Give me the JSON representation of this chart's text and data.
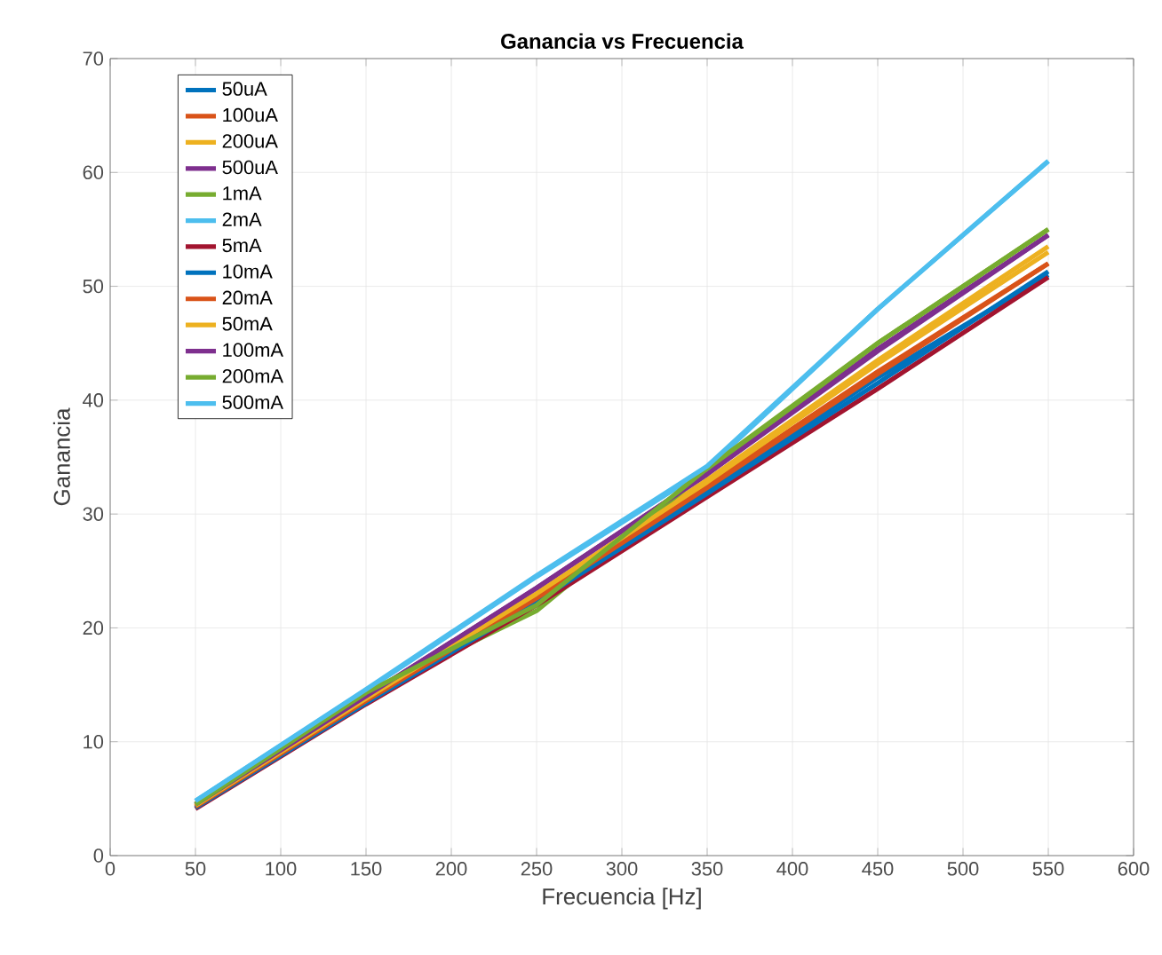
{
  "chart_data": {
    "type": "line",
    "title": "Ganancia vs Frecuencia",
    "xlabel": "Frecuencia [Hz]",
    "ylabel": "Ganancia",
    "x": [
      50,
      150,
      250,
      350,
      450,
      550
    ],
    "xlim": [
      0,
      600
    ],
    "xticks": [
      0,
      50,
      100,
      150,
      200,
      250,
      300,
      350,
      400,
      450,
      500,
      550,
      600
    ],
    "ylim": [
      0,
      70
    ],
    "yticks": [
      0,
      10,
      20,
      30,
      40,
      50,
      60,
      70
    ],
    "grid": true,
    "legend": "top left",
    "line_style": "solid",
    "series": [
      {
        "name": "50uA",
        "color": "#0072bd",
        "values": [
          4.2,
          13.5,
          22.5,
          32,
          42,
          51
        ]
      },
      {
        "name": "100uA",
        "color": "#d95319",
        "values": [
          4.3,
          13.6,
          22.8,
          32.5,
          42.5,
          52
        ]
      },
      {
        "name": "200uA",
        "color": "#edb120",
        "values": [
          4.4,
          13.8,
          23,
          33,
          43.5,
          53.5
        ]
      },
      {
        "name": "500uA",
        "color": "#7e2f8e",
        "values": [
          4.5,
          14,
          23.5,
          33.5,
          44.5,
          54.5
        ]
      },
      {
        "name": "1mA",
        "color": "#77ac30",
        "values": [
          4.5,
          14.2,
          21.5,
          33.8,
          45,
          55
        ]
      },
      {
        "name": "2mA",
        "color": "#4dbeee",
        "values": [
          4.8,
          14.5,
          24.5,
          34,
          48,
          61
        ]
      },
      {
        "name": "5mA",
        "color": "#a2142f",
        "values": [
          4.1,
          13.3,
          22,
          31.5,
          41,
          50.8
        ]
      },
      {
        "name": "10mA",
        "color": "#0072bd",
        "values": [
          4.2,
          13.4,
          22.3,
          31.8,
          41.5,
          51.3
        ]
      },
      {
        "name": "20mA",
        "color": "#d95319",
        "values": [
          4.3,
          13.6,
          22.6,
          32.3,
          42.3,
          52
        ]
      },
      {
        "name": "50mA",
        "color": "#edb120",
        "values": [
          4.4,
          13.8,
          23,
          32.8,
          43.2,
          53
        ]
      },
      {
        "name": "100mA",
        "color": "#7e2f8e",
        "values": [
          4.5,
          14,
          23.5,
          33.5,
          44.3,
          54.5
        ]
      },
      {
        "name": "200mA",
        "color": "#77ac30",
        "values": [
          4.5,
          14.3,
          22,
          34,
          45,
          55
        ]
      },
      {
        "name": "500mA",
        "color": "#4dbeee",
        "values": [
          4.8,
          14.6,
          24.6,
          34.2,
          48,
          61
        ]
      }
    ]
  }
}
